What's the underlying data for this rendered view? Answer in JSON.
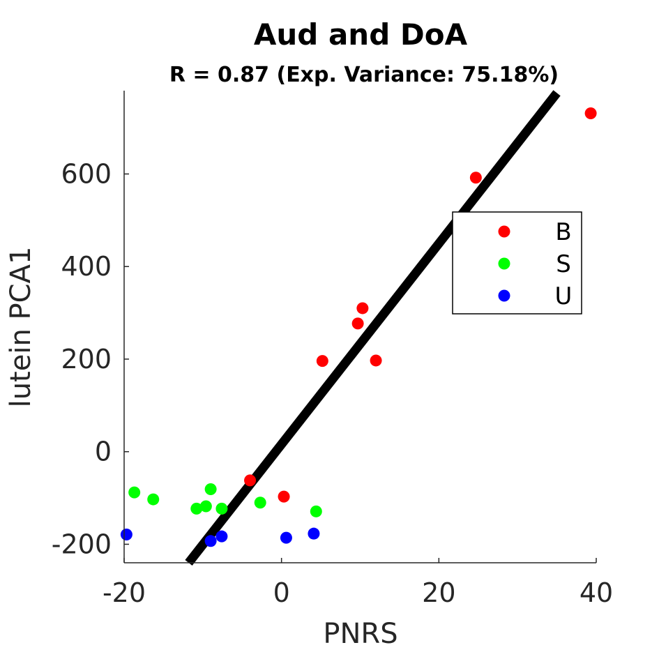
{
  "chart_data": {
    "type": "scatter",
    "title": "Aud and DoA",
    "subtitle": "R = 0.87 (Exp. Variance: 75.18%)",
    "xlabel": "PNRS",
    "ylabel": "lutein PCA1",
    "xlim": [
      -20,
      40
    ],
    "ylim": [
      -240,
      780
    ],
    "xticks": [
      -20,
      0,
      20,
      40
    ],
    "xtick_labels": [
      "-20",
      "0",
      "20",
      "40"
    ],
    "yticks": [
      -200,
      0,
      200,
      400,
      600
    ],
    "ytick_labels": [
      "-200",
      "0",
      "200",
      "400",
      "600"
    ],
    "grid": false,
    "legend_position": "right",
    "series": [
      {
        "name": "B",
        "color": "#ff0000",
        "points": [
          {
            "x": -4,
            "y": -62
          },
          {
            "x": 0.3,
            "y": -97
          },
          {
            "x": 5.2,
            "y": 196
          },
          {
            "x": 9.7,
            "y": 277
          },
          {
            "x": 10.3,
            "y": 310
          },
          {
            "x": 12,
            "y": 197
          },
          {
            "x": 24.7,
            "y": 592
          },
          {
            "x": 39.3,
            "y": 731
          }
        ]
      },
      {
        "name": "S",
        "color": "#00ff00",
        "points": [
          {
            "x": -18.7,
            "y": -88
          },
          {
            "x": -16.3,
            "y": -103
          },
          {
            "x": -10.8,
            "y": -123
          },
          {
            "x": -9.6,
            "y": -118
          },
          {
            "x": -9.0,
            "y": -81
          },
          {
            "x": -7.6,
            "y": -123
          },
          {
            "x": -2.7,
            "y": -110
          },
          {
            "x": 4.4,
            "y": -129
          }
        ]
      },
      {
        "name": "U",
        "color": "#0000ff",
        "points": [
          {
            "x": -19.7,
            "y": -179
          },
          {
            "x": -9.0,
            "y": -193
          },
          {
            "x": -7.6,
            "y": -183
          },
          {
            "x": 0.6,
            "y": -186
          },
          {
            "x": 4.1,
            "y": -177
          }
        ]
      }
    ],
    "fit_line": {
      "color": "#000000",
      "x": [
        -11.8,
        35.0
      ],
      "y": [
        -240,
        775
      ]
    }
  }
}
